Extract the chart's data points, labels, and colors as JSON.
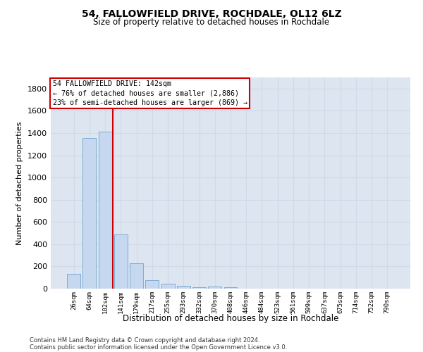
{
  "title1": "54, FALLOWFIELD DRIVE, ROCHDALE, OL12 6LZ",
  "title2": "Size of property relative to detached houses in Rochdale",
  "xlabel": "Distribution of detached houses by size in Rochdale",
  "ylabel": "Number of detached properties",
  "bar_labels": [
    "26sqm",
    "64sqm",
    "102sqm",
    "141sqm",
    "179sqm",
    "217sqm",
    "255sqm",
    "293sqm",
    "332sqm",
    "370sqm",
    "408sqm",
    "446sqm",
    "484sqm",
    "523sqm",
    "561sqm",
    "599sqm",
    "637sqm",
    "675sqm",
    "714sqm",
    "752sqm",
    "790sqm"
  ],
  "bar_values": [
    135,
    1355,
    1410,
    490,
    225,
    75,
    45,
    27,
    10,
    20,
    10,
    0,
    0,
    0,
    0,
    0,
    0,
    0,
    0,
    0,
    0
  ],
  "bar_color": "#c5d8ef",
  "bar_edge_color": "#7badd4",
  "grid_color": "#d0d8ea",
  "background_color": "#dde5f0",
  "annotation_box_color": "#ffffff",
  "annotation_border_color": "#cc0000",
  "red_line_color": "#cc0000",
  "red_line_x": 2.5,
  "annotation_title": "54 FALLOWFIELD DRIVE: 142sqm",
  "annotation_line1": "← 76% of detached houses are smaller (2,886)",
  "annotation_line2": "23% of semi-detached houses are larger (869) →",
  "footer1": "Contains HM Land Registry data © Crown copyright and database right 2024.",
  "footer2": "Contains public sector information licensed under the Open Government Licence v3.0.",
  "ylim": [
    0,
    1900
  ],
  "yticks": [
    0,
    200,
    400,
    600,
    800,
    1000,
    1200,
    1400,
    1600,
    1800
  ]
}
